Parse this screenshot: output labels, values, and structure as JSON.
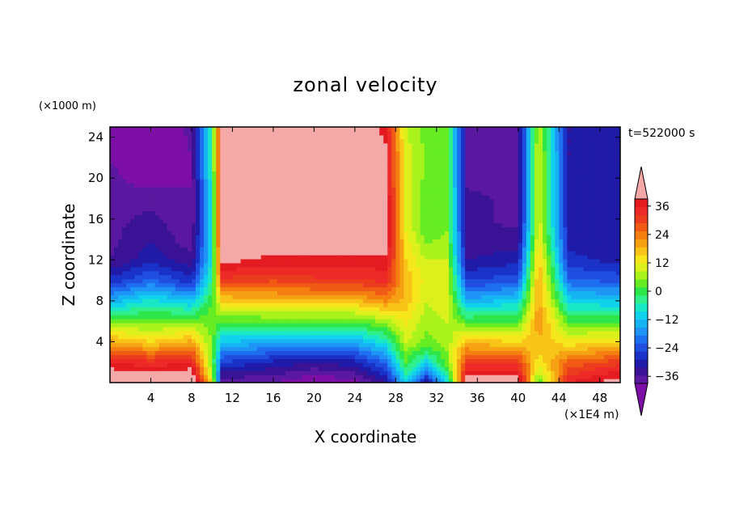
{
  "chart_data": {
    "type": "heatmap",
    "title": "zonal velocity",
    "xlabel": "X coordinate",
    "ylabel": "Z coordinate",
    "x_unit": "(×1E4 m)",
    "y_unit": "(×1000 m)",
    "time_label": "t=522000 s",
    "xlim": [
      0,
      50
    ],
    "ylim": [
      0,
      25
    ],
    "x_ticks": [
      4,
      8,
      12,
      16,
      20,
      24,
      28,
      32,
      36,
      40,
      44,
      48
    ],
    "y_ticks": [
      4,
      8,
      12,
      16,
      20,
      24
    ],
    "colorbar": {
      "levels": [
        -42,
        -39,
        -36,
        -33,
        -30,
        -27,
        -24,
        -21,
        -18,
        -15,
        -12,
        -9,
        -6,
        -3,
        0,
        3,
        6,
        9,
        12,
        15,
        18,
        21,
        24,
        27,
        30,
        33,
        36,
        39,
        42
      ],
      "tick_labels": [
        {
          "value": 36,
          "label": "36"
        },
        {
          "value": 24,
          "label": "24"
        },
        {
          "value": 12,
          "label": "12"
        },
        {
          "value": 0,
          "label": "0"
        },
        {
          "value": -12,
          "label": "−12"
        },
        {
          "value": -24,
          "label": "−24"
        },
        {
          "value": -36,
          "label": "−36"
        }
      ],
      "colors": [
        "#7d0ea6",
        "#5a18a0",
        "#3a1296",
        "#201aa8",
        "#1a32c8",
        "#1f4ee0",
        "#1e6ef0",
        "#1e94f6",
        "#16b4f2",
        "#10d2ec",
        "#18e8c6",
        "#30f08c",
        "#2ce64a",
        "#66ec22",
        "#aaf21c",
        "#dcf01c",
        "#f6e61c",
        "#f8c418",
        "#f6a014",
        "#f47e10",
        "#f05a14",
        "#ec3c1e",
        "#ee2a28",
        "#e41c22",
        "#f4a8a8"
      ]
    },
    "profiles": [
      {
        "x": 0,
        "values": [
          40,
          30,
          16,
          2,
          -14,
          -26,
          -33,
          -34,
          -34,
          -35,
          -35,
          -36,
          -36
        ]
      },
      {
        "x": 4,
        "values": [
          38,
          28,
          12,
          2,
          -8,
          -20,
          -28,
          -30,
          -32,
          -34,
          -38,
          -40,
          -40
        ]
      },
      {
        "x": 8,
        "values": [
          40,
          30,
          16,
          2,
          -12,
          -26,
          -32,
          -35,
          -36,
          -36,
          -36,
          -36,
          -35
        ]
      },
      {
        "x": 10,
        "values": [
          10,
          2,
          2,
          2,
          0,
          -4,
          -8,
          -8,
          -8,
          -8,
          -6,
          -4,
          -4
        ]
      },
      {
        "x": 11,
        "values": [
          -36,
          -24,
          -12,
          0,
          12,
          26,
          34,
          36,
          36,
          36,
          36,
          36,
          36
        ]
      },
      {
        "x": 16,
        "values": [
          -36,
          -28,
          -14,
          0,
          14,
          24,
          32,
          36,
          38,
          36,
          36,
          38,
          38
        ]
      },
      {
        "x": 20,
        "values": [
          -40,
          -30,
          -14,
          0,
          14,
          26,
          32,
          36,
          38,
          38,
          39,
          40,
          40
        ]
      },
      {
        "x": 24,
        "values": [
          -38,
          -28,
          -14,
          0,
          14,
          26,
          32,
          36,
          38,
          36,
          36,
          36,
          36
        ]
      },
      {
        "x": 27,
        "values": [
          -30,
          -20,
          -8,
          4,
          18,
          28,
          32,
          36,
          36,
          36,
          34,
          34,
          32
        ]
      },
      {
        "x": 29,
        "values": [
          -10,
          0,
          6,
          10,
          14,
          14,
          12,
          10,
          8,
          8,
          8,
          8,
          6
        ]
      },
      {
        "x": 31,
        "values": [
          -30,
          -10,
          2,
          4,
          6,
          8,
          6,
          2,
          0,
          0,
          2,
          2,
          2
        ]
      },
      {
        "x": 33,
        "values": [
          -10,
          2,
          4,
          6,
          8,
          8,
          6,
          4,
          2,
          2,
          2,
          2,
          2
        ]
      },
      {
        "x": 35,
        "values": [
          36,
          26,
          14,
          0,
          -14,
          -24,
          -30,
          -32,
          -32,
          -32,
          -34,
          -34,
          -34
        ]
      },
      {
        "x": 40,
        "values": [
          36,
          26,
          12,
          0,
          -10,
          -22,
          -28,
          -32,
          -34,
          -34,
          -34,
          -34,
          -34
        ]
      },
      {
        "x": 42,
        "values": [
          0,
          10,
          14,
          18,
          16,
          16,
          14,
          10,
          8,
          8,
          8,
          8,
          6
        ]
      },
      {
        "x": 45,
        "values": [
          30,
          22,
          10,
          0,
          -10,
          -20,
          -26,
          -28,
          -30,
          -30,
          -30,
          -30,
          -30
        ]
      },
      {
        "x": 50,
        "values": [
          36,
          26,
          12,
          0,
          -12,
          -22,
          -28,
          -30,
          -30,
          -30,
          -30,
          -30,
          -30
        ]
      }
    ],
    "profile_z": [
      0,
      2,
      4,
      6,
      8,
      10,
      12,
      14,
      16,
      18,
      20,
      22,
      25
    ]
  }
}
